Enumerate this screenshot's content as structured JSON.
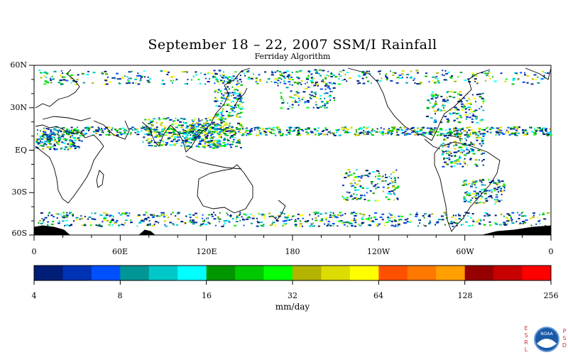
{
  "header": {
    "title": "September 18 – 22, 2007 SSM/I Rainfall",
    "subtitle": "Ferriday Algorithm"
  },
  "map": {
    "lat_labels": [
      "60N",
      "30N",
      "EQ",
      "30S",
      "60S"
    ],
    "lon_labels": [
      "0",
      "60E",
      "120E",
      "180",
      "120W",
      "60W",
      "0"
    ]
  },
  "colorbar": {
    "colors": [
      "#001e78",
      "#0032b4",
      "#0050ff",
      "#009696",
      "#00c8c8",
      "#00ffff",
      "#009600",
      "#00c800",
      "#00ff00",
      "#b4b400",
      "#dcdc00",
      "#ffff00",
      "#ff5000",
      "#ff7800",
      "#ffa000",
      "#960000",
      "#c80000",
      "#ff0000"
    ],
    "tick_labels": [
      "4",
      "8",
      "16",
      "32",
      "64",
      "128",
      "256"
    ],
    "units": "mm/day"
  },
  "logo": {
    "left_text": [
      "E",
      "S",
      "R",
      "L"
    ],
    "right_text": [
      "P",
      "S",
      "D"
    ],
    "badge": "NOAA"
  }
}
